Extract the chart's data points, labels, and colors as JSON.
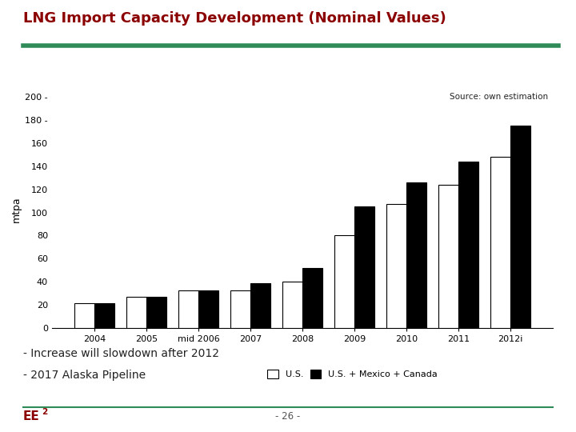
{
  "title": "LNG Import Capacity Development (Nominal Values)",
  "title_color": "#8B0000",
  "source_text": "Source: own estimation",
  "ylabel": "mtpa",
  "categories": [
    "2004",
    "2005",
    "mid 2006",
    "2007",
    "2008",
    "2009",
    "2010",
    "2011",
    "2012i"
  ],
  "us_values": [
    22,
    27,
    33,
    33,
    40,
    80,
    107,
    124,
    148
  ],
  "us_mex_can_values": [
    22,
    27,
    33,
    39,
    52,
    105,
    126,
    144,
    175
  ],
  "ylim": [
    0,
    205
  ],
  "ytick_values": [
    0,
    20,
    40,
    60,
    80,
    100,
    120,
    140,
    160,
    180,
    200
  ],
  "ytick_labels": [
    "0",
    "20",
    "40",
    "60",
    "80",
    "100",
    "120",
    "140",
    "160",
    "180 -",
    "200 -"
  ],
  "legend_us": "U.S.",
  "legend_us_mex_can": "U.S. + Mexico + Canada",
  "bar_width": 0.38,
  "note1": "- Increase will slowdown after 2012",
  "note2": "- 2017 Alaska Pipeline",
  "footer_left_main": "EE",
  "footer_left_sup": "2",
  "footer_center": "- 26 -",
  "green_line_color": "#2e8b57",
  "title_font_size": 13,
  "notes_font_size": 10
}
